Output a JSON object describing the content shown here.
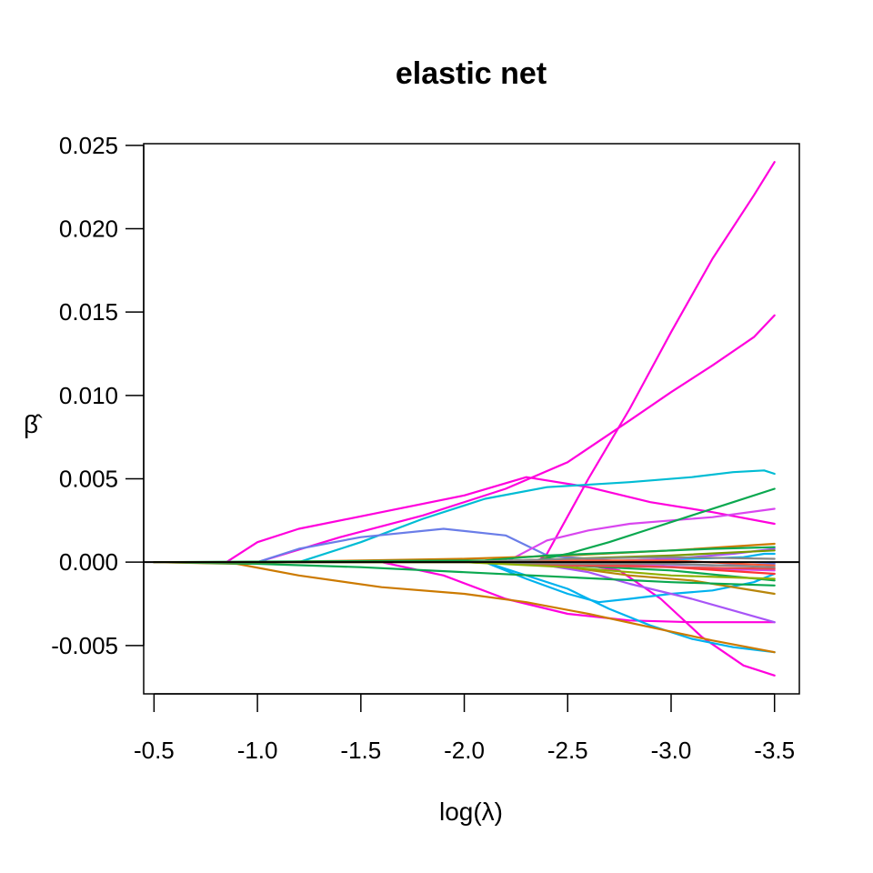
{
  "chart_data": {
    "type": "line",
    "title": "elastic net",
    "xlabel": "log(λ)",
    "ylabel": "β̂",
    "x_reversed": true,
    "xlim": [
      -0.45,
      -3.62
    ],
    "ylim": [
      -0.0079,
      0.0251
    ],
    "x_ticks": [
      {
        "value": -0.5,
        "label": "-0.5"
      },
      {
        "value": -1.0,
        "label": "-1.0"
      },
      {
        "value": -1.5,
        "label": "-1.5"
      },
      {
        "value": -2.0,
        "label": "-2.0"
      },
      {
        "value": -2.5,
        "label": "-2.5"
      },
      {
        "value": -3.0,
        "label": "-3.0"
      },
      {
        "value": -3.5,
        "label": "-3.5"
      }
    ],
    "y_ticks": [
      {
        "value": -0.005,
        "label": "-0.005"
      },
      {
        "value": 0.0,
        "label": "0.000"
      },
      {
        "value": 0.005,
        "label": "0.005"
      },
      {
        "value": 0.01,
        "label": "0.010"
      },
      {
        "value": 0.015,
        "label": "0.015"
      },
      {
        "value": 0.02,
        "label": "0.020"
      },
      {
        "value": 0.025,
        "label": "0.025"
      }
    ],
    "zero_line": 0,
    "grid": false,
    "series": [
      {
        "color": "#ff00dd",
        "x": [
          -0.5,
          -2.35,
          -2.4,
          -2.6,
          -2.8,
          -3.0,
          -3.2,
          -3.4,
          -3.5
        ],
        "y": [
          0,
          0,
          0.0005,
          0.005,
          0.0092,
          0.0138,
          0.0182,
          0.022,
          0.024
        ]
      },
      {
        "color": "#ff00dd",
        "x": [
          -0.5,
          -1.0,
          -1.4,
          -1.8,
          -2.2,
          -2.5,
          -2.8,
          -3.0,
          -3.2,
          -3.4,
          -3.5
        ],
        "y": [
          0,
          0,
          0.0015,
          0.0028,
          0.0044,
          0.006,
          0.0085,
          0.0102,
          0.0118,
          0.0135,
          0.0148
        ]
      },
      {
        "color": "#ff00dd",
        "x": [
          -0.5,
          -0.85,
          -1.0,
          -1.2,
          -1.6,
          -2.0,
          -2.3,
          -2.6,
          -2.9,
          -3.2,
          -3.5
        ],
        "y": [
          0,
          0,
          0.0012,
          0.002,
          0.003,
          0.004,
          0.0051,
          0.0045,
          0.0036,
          0.003,
          0.0023
        ]
      },
      {
        "color": "#ff00dd",
        "x": [
          -0.5,
          -1.6,
          -1.9,
          -2.2,
          -2.5,
          -2.8,
          -3.1,
          -3.5
        ],
        "y": [
          0,
          0,
          -0.0008,
          -0.0022,
          -0.0031,
          -0.0035,
          -0.0036,
          -0.0036
        ]
      },
      {
        "color": "#ff00dd",
        "x": [
          -0.5,
          -2.5,
          -2.75,
          -2.95,
          -3.15,
          -3.35,
          -3.5
        ],
        "y": [
          0,
          0,
          -0.0005,
          -0.0022,
          -0.0045,
          -0.0062,
          -0.0068
        ]
      },
      {
        "color": "#00bcd4",
        "x": [
          -0.5,
          -1.2,
          -1.5,
          -1.8,
          -2.1,
          -2.4,
          -2.8,
          -3.1,
          -3.3,
          -3.45,
          -3.5
        ],
        "y": [
          0,
          0,
          0.0012,
          0.0026,
          0.0038,
          0.0045,
          0.0048,
          0.0051,
          0.0054,
          0.0055,
          0.0053
        ]
      },
      {
        "color": "#6a7de8",
        "x": [
          -0.5,
          -1.0,
          -1.2,
          -1.5,
          -1.9,
          -2.2,
          -2.4,
          -2.6,
          -2.9,
          -3.2,
          -3.5
        ],
        "y": [
          0,
          0,
          0.0008,
          0.0015,
          0.002,
          0.0016,
          0.0004,
          0.0002,
          -0.0001,
          -0.0002,
          -0.0001
        ]
      },
      {
        "color": "#00b2ee",
        "x": [
          -0.5,
          -2.1,
          -2.3,
          -2.5,
          -2.7,
          -2.9,
          -3.1,
          -3.3,
          -3.5
        ],
        "y": [
          0,
          0,
          -0.0008,
          -0.0016,
          -0.0028,
          -0.0038,
          -0.0046,
          -0.0051,
          -0.0054
        ]
      },
      {
        "color": "#00b2ee",
        "x": [
          -0.5,
          -2.1,
          -2.3,
          -2.5,
          -2.65,
          -2.8,
          -3.0,
          -3.2,
          -3.4,
          -3.5
        ],
        "y": [
          0,
          0,
          -0.001,
          -0.0019,
          -0.0024,
          -0.0022,
          -0.0019,
          -0.0017,
          -0.0012,
          -0.0007
        ]
      },
      {
        "color": "#00b2ee",
        "x": [
          -0.5,
          -2.4,
          -2.8,
          -3.1,
          -3.35,
          -3.45,
          -3.5
        ],
        "y": [
          0,
          0,
          0.0001,
          0.0002,
          0.0003,
          0.0005,
          0.0005
        ]
      },
      {
        "color": "#a855f7",
        "x": [
          -0.5,
          -2.3,
          -2.6,
          -2.8,
          -3.1,
          -3.3,
          -3.5
        ],
        "y": [
          0,
          0,
          -0.0006,
          -0.0013,
          -0.0022,
          -0.0029,
          -0.0036
        ]
      },
      {
        "color": "#d946ef",
        "x": [
          -0.5,
          -2.2,
          -2.4,
          -2.6,
          -2.8,
          -3.0,
          -3.2,
          -3.5
        ],
        "y": [
          0,
          0,
          0.0013,
          0.0019,
          0.0023,
          0.0025,
          0.0027,
          0.0032
        ]
      },
      {
        "color": "#d946ef",
        "x": [
          -0.5,
          -2.3,
          -2.6,
          -2.9,
          -3.2,
          -3.5
        ],
        "y": [
          0,
          0,
          -0.0001,
          -0.0002,
          -0.0004,
          -0.0005
        ]
      },
      {
        "color": "#a855f7",
        "x": [
          -0.5,
          -2.6,
          -3.0,
          -3.3,
          -3.5
        ],
        "y": [
          0,
          0,
          0.0002,
          0.0005,
          0.0008
        ]
      },
      {
        "color": "#cc7a00",
        "x": [
          -0.5,
          -0.9,
          -1.2,
          -1.6,
          -2.0,
          -2.3,
          -2.6,
          -2.9,
          -3.2,
          -3.5
        ],
        "y": [
          0,
          -0.0001,
          -0.0008,
          -0.0015,
          -0.0019,
          -0.0024,
          -0.0031,
          -0.0039,
          -0.0047,
          -0.0054
        ]
      },
      {
        "color": "#b8860b",
        "x": [
          -0.5,
          -2.2,
          -2.5,
          -2.8,
          -3.1,
          -3.35,
          -3.5
        ],
        "y": [
          0,
          0,
          -0.0003,
          -0.0008,
          -0.0011,
          -0.0016,
          -0.0019
        ]
      },
      {
        "color": "#cc7a00",
        "x": [
          -0.5,
          -1.0,
          -1.5,
          -2.0,
          -2.5,
          -3.0,
          -3.5
        ],
        "y": [
          0,
          0,
          0.0001,
          0.0002,
          0.0004,
          0.0007,
          0.0011
        ]
      },
      {
        "color": "#0aa84f",
        "x": [
          -0.5,
          -2.3,
          -2.5,
          -2.7,
          -2.9,
          -3.1,
          -3.3,
          -3.5
        ],
        "y": [
          0,
          0,
          0.0005,
          0.0012,
          0.002,
          0.0028,
          0.0036,
          0.0044
        ]
      },
      {
        "color": "#0aa84f",
        "x": [
          -0.5,
          -2.1,
          -2.4,
          -2.8,
          -3.2,
          -3.5
        ],
        "y": [
          0,
          0.0001,
          0.0004,
          0.0006,
          0.0008,
          0.0009
        ]
      },
      {
        "color": "#0aa84f",
        "x": [
          -0.5,
          -1.0,
          -1.5,
          -2.0,
          -2.5,
          -3.0,
          -3.5
        ],
        "y": [
          0,
          -0.0001,
          -0.0003,
          -0.0006,
          -0.0009,
          -0.0012,
          -0.0014
        ]
      },
      {
        "color": "#0aa84f",
        "x": [
          -0.5,
          -2.0,
          -2.5,
          -3.0,
          -3.5
        ],
        "y": [
          0,
          0,
          -0.0002,
          -0.0005,
          -0.0011
        ]
      },
      {
        "color": "#7a9a00",
        "x": [
          -0.5,
          -2.0,
          -2.5,
          -3.0,
          -3.5
        ],
        "y": [
          0,
          0,
          0.0002,
          0.0004,
          0.0007
        ]
      },
      {
        "color": "#ff3333",
        "x": [
          -0.5,
          -2.0,
          -2.5,
          -3.0,
          -3.5
        ],
        "y": [
          0,
          0,
          -0.0001,
          -0.0003,
          -0.0007
        ]
      },
      {
        "color": "#ff5a36",
        "x": [
          -0.5,
          -2.0,
          -2.5,
          -3.0,
          -3.5
        ],
        "y": [
          0,
          0,
          0.0001,
          0.0001,
          -0.0002
        ]
      },
      {
        "color": "#e64a4a",
        "x": [
          -0.5,
          -2.0,
          -2.5,
          -3.0,
          -3.5
        ],
        "y": [
          0,
          0,
          -0.0002,
          -0.0003,
          -0.0004
        ]
      },
      {
        "color": "#888888",
        "x": [
          -0.5,
          -2.0,
          -2.5,
          -3.0,
          -3.5
        ],
        "y": [
          0,
          0,
          0.0002,
          0.0003,
          0.0002
        ]
      },
      {
        "color": "#888888",
        "x": [
          -0.5,
          -2.0,
          -2.5,
          -3.0,
          -3.5
        ],
        "y": [
          0,
          0,
          -0.0001,
          -0.0001,
          -0.0003
        ]
      },
      {
        "color": "#8fb000",
        "x": [
          -0.5,
          -2.0,
          -2.5,
          -3.0,
          -3.5
        ],
        "y": [
          0,
          0,
          -0.0003,
          -0.0008,
          -0.001
        ]
      }
    ]
  }
}
